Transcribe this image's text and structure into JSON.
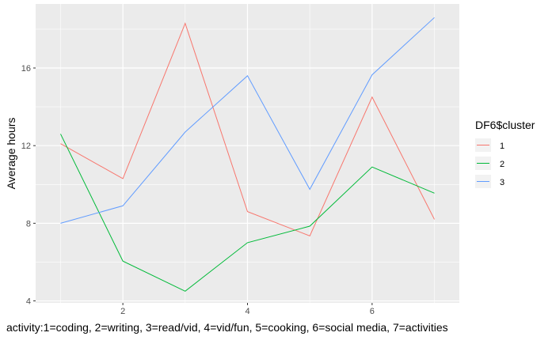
{
  "chart_data": {
    "type": "line",
    "title": "",
    "xlabel": "activity:1=coding, 2=writing, 3=read/vid, 4=vid/fun, 5=cooking, 6=social media, 7=activities",
    "ylabel": "Average hours",
    "x": [
      1,
      2,
      3,
      4,
      5,
      6,
      7
    ],
    "xlim": [
      0.6,
      7.4
    ],
    "ylim": [
      3.9,
      19.3
    ],
    "x_ticks": [
      2,
      4,
      6
    ],
    "y_ticks": [
      4,
      8,
      12,
      16
    ],
    "grid": true,
    "legend": {
      "title": "DF6$cluster",
      "placement": "right"
    },
    "series": [
      {
        "name": "1",
        "color": "#F8766D",
        "values": [
          12.1,
          10.3,
          18.3,
          8.6,
          7.35,
          14.5,
          8.2
        ]
      },
      {
        "name": "2",
        "color": "#00BA38",
        "values": [
          12.6,
          6.05,
          4.5,
          7.0,
          7.85,
          10.9,
          9.55
        ]
      },
      {
        "name": "3",
        "color": "#619CFF",
        "values": [
          8.0,
          8.9,
          12.7,
          15.6,
          9.75,
          15.65,
          18.6
        ]
      }
    ]
  }
}
